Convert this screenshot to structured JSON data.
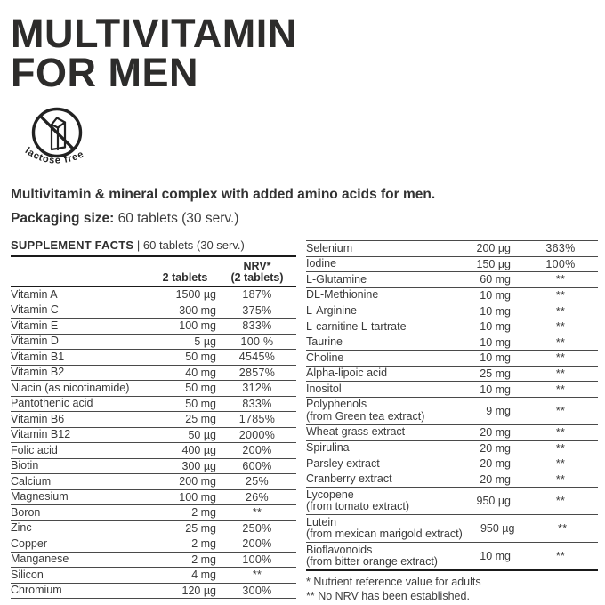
{
  "header": {
    "title_line1": "MULTIVITAMIN",
    "title_line2": "FOR MEN"
  },
  "badge": {
    "label": "lactose free"
  },
  "description": "Multivitamin & mineral complex with added amino acids for men.",
  "packaging": {
    "label": "Packaging size:",
    "value": "60 tablets (30 serv.)"
  },
  "supplement_facts": {
    "title": "SUPPLEMENT FACTS",
    "separator": "|",
    "serving_info": "60 tablets (30 serv.)",
    "columns": {
      "amount": "2 tablets",
      "nrv_line1": "NRV*",
      "nrv_line2": "(2 tablets)"
    },
    "rows_left": [
      {
        "name": "Vitamin A",
        "amount": "1500 µg",
        "nrv": "187%"
      },
      {
        "name": "Vitamin C",
        "amount": "300 mg",
        "nrv": "375%"
      },
      {
        "name": "Vitamin E",
        "amount": "100 mg",
        "nrv": "833%"
      },
      {
        "name": "Vitamin D",
        "amount": "5 µg",
        "nrv": "100 %"
      },
      {
        "name": "Vitamin B1",
        "amount": "50 mg",
        "nrv": "4545%"
      },
      {
        "name": "Vitamin B2",
        "amount": "40 mg",
        "nrv": "2857%"
      },
      {
        "name": "Niacin (as nicotinamide)",
        "amount": "50 mg",
        "nrv": "312%"
      },
      {
        "name": "Pantothenic acid",
        "amount": "50 mg",
        "nrv": "833%"
      },
      {
        "name": "Vitamin B6",
        "amount": "25 mg",
        "nrv": "1785%"
      },
      {
        "name": "Vitamin B12",
        "amount": "50 µg",
        "nrv": "2000%"
      },
      {
        "name": "Folic acid",
        "amount": "400 µg",
        "nrv": "200%"
      },
      {
        "name": "Biotin",
        "amount": "300 µg",
        "nrv": "600%"
      },
      {
        "name": "Calcium",
        "amount": "200 mg",
        "nrv": "25%"
      },
      {
        "name": "Magnesium",
        "amount": "100 mg",
        "nrv": "26%"
      },
      {
        "name": "Boron",
        "amount": "2 mg",
        "nrv": "**"
      },
      {
        "name": "Zinc",
        "amount": "25 mg",
        "nrv": "250%"
      },
      {
        "name": "Copper",
        "amount": "2 mg",
        "nrv": "200%"
      },
      {
        "name": "Manganese",
        "amount": "2 mg",
        "nrv": "100%"
      },
      {
        "name": "Silicon",
        "amount": "4 mg",
        "nrv": "**"
      },
      {
        "name": "Chromium",
        "amount": "120 µg",
        "nrv": "300%"
      }
    ],
    "rows_right": [
      {
        "name": "Selenium",
        "amount": "200 µg",
        "nrv": "363%"
      },
      {
        "name": "Iodine",
        "amount": "150 µg",
        "nrv": "100%"
      },
      {
        "name": "L-Glutamine",
        "amount": "60 mg",
        "nrv": "**"
      },
      {
        "name": "DL-Methionine",
        "amount": "10 mg",
        "nrv": "**"
      },
      {
        "name": "L-Arginine",
        "amount": "10 mg",
        "nrv": "**"
      },
      {
        "name": "L-carnitine L-tartrate",
        "amount": "10 mg",
        "nrv": "**"
      },
      {
        "name": "Taurine",
        "amount": "10 mg",
        "nrv": "**"
      },
      {
        "name": "Choline",
        "amount": "10 mg",
        "nrv": "**"
      },
      {
        "name": "Alpha-lipoic acid",
        "amount": "25 mg",
        "nrv": "**"
      },
      {
        "name": "Inositol",
        "amount": "10 mg",
        "nrv": "**"
      },
      {
        "name": "Polyphenols",
        "sub": "(from Green tea extract)",
        "amount": "9 mg",
        "nrv": "**"
      },
      {
        "name": "Wheat grass extract",
        "amount": "20 mg",
        "nrv": "**"
      },
      {
        "name": "Spirulina",
        "amount": "20 mg",
        "nrv": "**"
      },
      {
        "name": "Parsley extract",
        "amount": "20 mg",
        "nrv": "**"
      },
      {
        "name": "Cranberry extract",
        "amount": "20 mg",
        "nrv": "**"
      },
      {
        "name": "Lycopene",
        "sub": "(from tomato extract)",
        "amount": "950 µg",
        "nrv": "**"
      },
      {
        "name": "Lutein",
        "sub": "(from mexican marigold extract)",
        "amount": "950 µg",
        "nrv": "**"
      },
      {
        "name": "Bioflavonoids",
        "sub": "(from bitter orange extract)",
        "amount": "10 mg",
        "nrv": "**"
      }
    ],
    "footnotes": [
      "* Nutrient reference value for adults",
      "** No NRV has been established."
    ]
  },
  "colors": {
    "text": "#3a3a3a",
    "title": "#2d2c2b",
    "line-thin": "#4a4a4a",
    "line-thick": "#1a1a1a",
    "icon": "#222222",
    "bg": "#ffffff"
  }
}
